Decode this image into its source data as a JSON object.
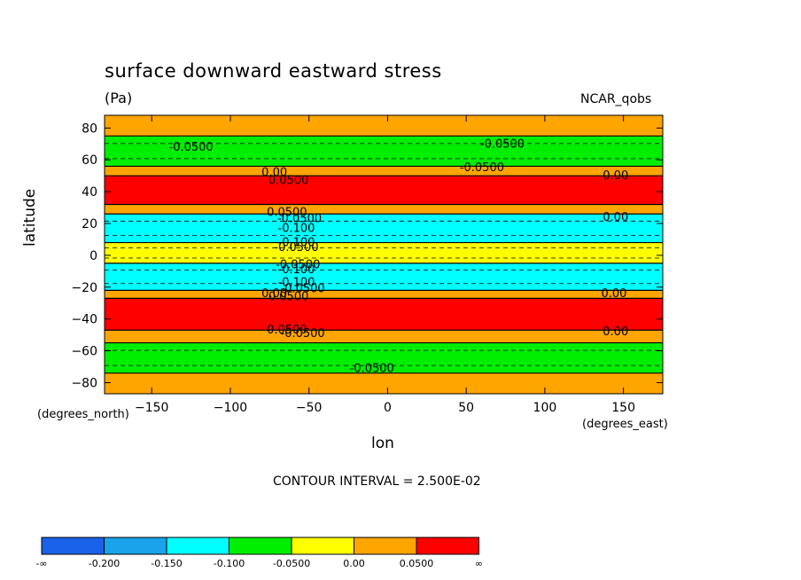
{
  "title": "surface downward eastward stress",
  "units": "(Pa)",
  "dataset": "NCAR_qobs",
  "contour_interval": "CONTOUR INTERVAL = 2.500E-02",
  "chart_data": {
    "type": "heatmap",
    "title": "surface downward eastward stress",
    "units": "(Pa)",
    "dataset": "NCAR_qobs",
    "xlabel": "lon",
    "ylabel": "latitude",
    "x_units": "(degrees_east)",
    "y_units": "(degrees_north)",
    "xlim": [
      -180,
      175
    ],
    "ylim": [
      -87,
      88
    ],
    "x_ticks": [
      -150,
      -100,
      -50,
      0,
      50,
      100,
      150
    ],
    "y_ticks": [
      -80,
      -60,
      -40,
      -20,
      0,
      20,
      40,
      60,
      80
    ],
    "contour_interval": 0.025,
    "zonal_bands": [
      {
        "lat": [
          75,
          88
        ],
        "value": 0.0
      },
      {
        "lat": [
          56,
          75
        ],
        "value": -0.06
      },
      {
        "lat": [
          50,
          56
        ],
        "value": 0.0
      },
      {
        "lat": [
          32,
          50
        ],
        "value": 0.08
      },
      {
        "lat": [
          26,
          32
        ],
        "value": 0.0
      },
      {
        "lat": [
          8,
          26
        ],
        "value": -0.12
      },
      {
        "lat": [
          -5,
          8
        ],
        "value": -0.03
      },
      {
        "lat": [
          -22,
          -5
        ],
        "value": -0.12
      },
      {
        "lat": [
          -27,
          -22
        ],
        "value": 0.0
      },
      {
        "lat": [
          -47,
          -27
        ],
        "value": 0.08
      },
      {
        "lat": [
          -55,
          -47
        ],
        "value": 0.0
      },
      {
        "lat": [
          -74,
          -55
        ],
        "value": -0.06
      },
      {
        "lat": [
          -87,
          -74
        ],
        "value": 0.0
      }
    ],
    "contour_labels": [
      {
        "text": "-0.0500",
        "lon": -125,
        "lat": 68
      },
      {
        "text": "-0.0500",
        "lon": 73,
        "lat": 70
      },
      {
        "text": "-0.0500",
        "lon": 60,
        "lat": 55
      },
      {
        "text": "0.00",
        "lon": -72,
        "lat": 52
      },
      {
        "text": "0.0500",
        "lon": -63,
        "lat": 47
      },
      {
        "text": "0.00",
        "lon": 145,
        "lat": 50
      },
      {
        "text": "0.0500",
        "lon": -64,
        "lat": 27
      },
      {
        "text": "-0.0500",
        "lon": -56,
        "lat": 23
      },
      {
        "text": "-0.100",
        "lon": -58,
        "lat": 17
      },
      {
        "text": "0.00",
        "lon": 145,
        "lat": 24
      },
      {
        "text": "-0.100",
        "lon": -58,
        "lat": 8
      },
      {
        "text": "-0.0500",
        "lon": -58,
        "lat": 5
      },
      {
        "text": "-0.0500",
        "lon": -57,
        "lat": -6
      },
      {
        "text": "-0.100",
        "lon": -58,
        "lat": -9
      },
      {
        "text": "-0.100",
        "lon": -58,
        "lat": -17
      },
      {
        "text": "-0.0500",
        "lon": -54,
        "lat": -21
      },
      {
        "text": "0.00",
        "lon": -72,
        "lat": -24
      },
      {
        "text": "0.0500",
        "lon": -63,
        "lat": -26
      },
      {
        "text": "0.00",
        "lon": 144,
        "lat": -24
      },
      {
        "text": "0.0500",
        "lon": -64,
        "lat": -47
      },
      {
        "text": "-0.0500",
        "lon": -54,
        "lat": -49
      },
      {
        "text": "0.00",
        "lon": 145,
        "lat": -48
      },
      {
        "text": "-0.0500",
        "lon": -10,
        "lat": -71
      }
    ],
    "colorbar": {
      "colors": [
        "#1a62ea",
        "#1aa3ea",
        "#00ffff",
        "#00ee00",
        "#ffff00",
        "#ffa500",
        "#ff0000"
      ],
      "labels": [
        "-∞",
        "-0.200",
        "-0.150",
        "-0.100",
        "-0.0500",
        "0.00",
        "0.0500",
        "∞"
      ],
      "bounds": [
        -0.2,
        -0.15,
        -0.1,
        -0.05,
        0.0,
        0.05
      ]
    }
  }
}
